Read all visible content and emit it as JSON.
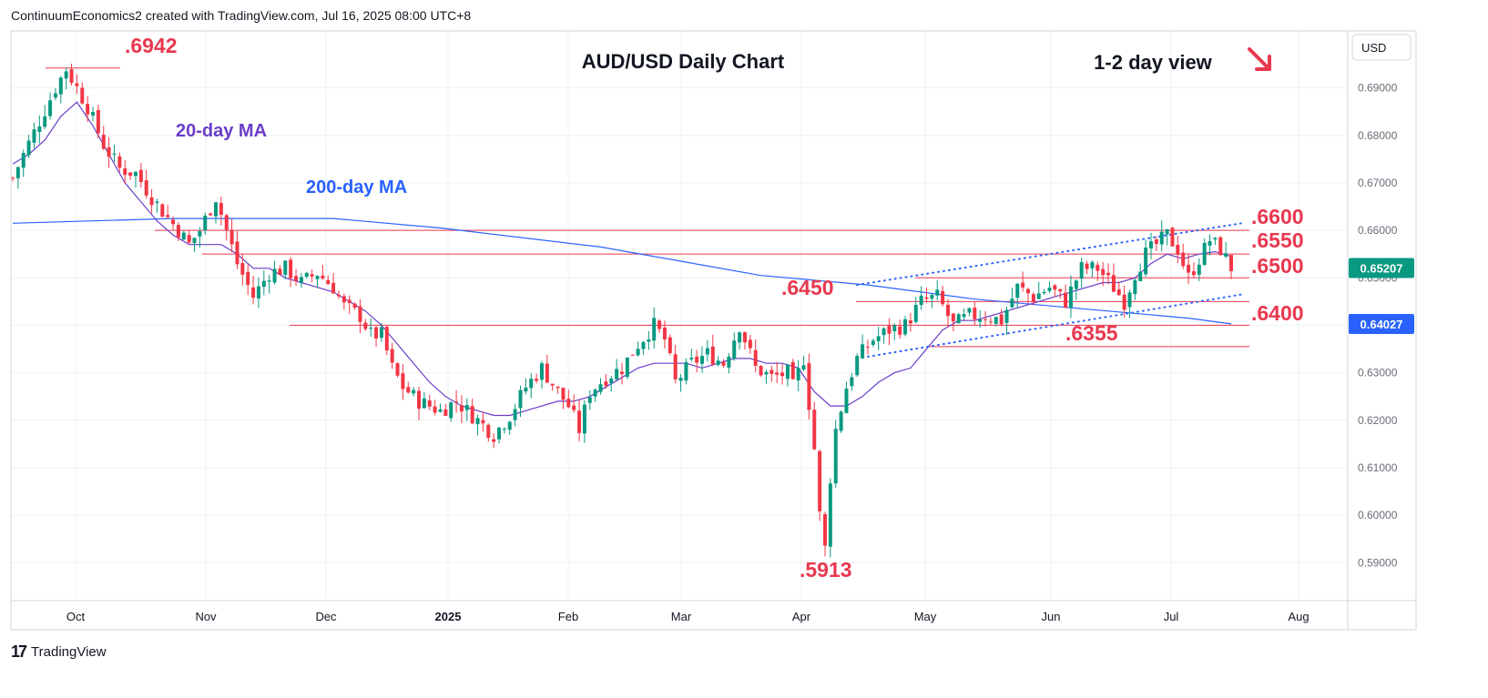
{
  "header": {
    "attribution": "ContinuumEconomics2 created with TradingView.com, Jul 16, 2025 08:00 UTC+8"
  },
  "footer": {
    "brand": "TradingView",
    "logo_text": "17"
  },
  "chart_data": {
    "type": "candlestick",
    "title": "AUD/USD Daily Chart",
    "view_label": "1-2 day view",
    "view_direction": "down",
    "currency": "USD",
    "ylim": [
      0.582,
      0.702
    ],
    "y_ticks": [
      "0.69000",
      "0.68000",
      "0.67000",
      "0.66000",
      "0.65000",
      "0.64000",
      "0.63000",
      "0.62000",
      "0.61000",
      "0.60000",
      "0.59000"
    ],
    "x_ticks": [
      "Oct",
      "Nov",
      "Dec",
      "2025",
      "Feb",
      "Mar",
      "Apr",
      "May",
      "Jun",
      "Jul",
      "Aug"
    ],
    "price_badges": [
      {
        "value": "0.65207",
        "color": "#089981"
      },
      {
        "value": "0.64027",
        "color": "#2962ff"
      }
    ],
    "moving_averages": [
      {
        "name": "20-day MA",
        "color": "#6a3ec9"
      },
      {
        "name": "200-day MA",
        "color": "#2962ff"
      }
    ],
    "levels": [
      {
        "value": 0.66,
        "label": ".6600"
      },
      {
        "value": 0.655,
        "label": ".6550"
      },
      {
        "value": 0.65,
        "label": ".6500"
      },
      {
        "value": 0.645,
        "label": ".6450"
      },
      {
        "value": 0.64,
        "label": ".6400"
      },
      {
        "value": 0.6355,
        "label": ".6355"
      }
    ],
    "annotations": [
      {
        "label": ".6942",
        "value": 0.6942
      },
      {
        "label": ".5913",
        "value": 0.5913
      }
    ],
    "level_color": "#e8384f",
    "up_color": "#089981",
    "down_color": "#f23645",
    "price_path": [
      [
        0,
        0.671
      ],
      [
        2,
        0.676
      ],
      [
        5,
        0.683
      ],
      [
        8,
        0.69
      ],
      [
        10,
        0.694
      ],
      [
        12,
        0.69
      ],
      [
        14,
        0.686
      ],
      [
        17,
        0.678
      ],
      [
        20,
        0.673
      ],
      [
        23,
        0.672
      ],
      [
        26,
        0.667
      ],
      [
        28,
        0.664
      ],
      [
        31,
        0.66
      ],
      [
        33,
        0.657
      ],
      [
        35,
        0.66
      ],
      [
        38,
        0.667
      ],
      [
        40,
        0.66
      ],
      [
        42,
        0.653
      ],
      [
        45,
        0.646
      ],
      [
        48,
        0.651
      ],
      [
        51,
        0.652
      ],
      [
        54,
        0.649
      ],
      [
        57,
        0.651
      ],
      [
        60,
        0.648
      ],
      [
        62,
        0.644
      ],
      [
        65,
        0.642
      ],
      [
        67,
        0.638
      ],
      [
        69,
        0.638
      ],
      [
        71,
        0.631
      ],
      [
        73,
        0.627
      ],
      [
        76,
        0.624
      ],
      [
        80,
        0.622
      ],
      [
        83,
        0.624
      ],
      [
        86,
        0.621
      ],
      [
        90,
        0.617
      ],
      [
        93,
        0.621
      ],
      [
        96,
        0.627
      ],
      [
        99,
        0.631
      ],
      [
        102,
        0.626
      ],
      [
        104,
        0.623
      ],
      [
        106,
        0.618
      ],
      [
        108,
        0.626
      ],
      [
        111,
        0.629
      ],
      [
        114,
        0.631
      ],
      [
        117,
        0.636
      ],
      [
        120,
        0.64
      ],
      [
        122,
        0.637
      ],
      [
        124,
        0.628
      ],
      [
        127,
        0.632
      ],
      [
        130,
        0.634
      ],
      [
        133,
        0.632
      ],
      [
        136,
        0.64
      ],
      [
        139,
        0.631
      ],
      [
        142,
        0.629
      ],
      [
        145,
        0.63
      ],
      [
        146,
        0.627
      ],
      [
        148,
        0.633
      ],
      [
        150,
        0.614
      ],
      [
        151,
        0.6
      ],
      [
        152,
        0.593
      ],
      [
        153,
        0.608
      ],
      [
        154,
        0.618
      ],
      [
        156,
        0.627
      ],
      [
        158,
        0.633
      ],
      [
        161,
        0.637
      ],
      [
        164,
        0.639
      ],
      [
        167,
        0.64
      ],
      [
        170,
        0.645
      ],
      [
        173,
        0.646
      ],
      [
        176,
        0.64
      ],
      [
        179,
        0.642
      ],
      [
        182,
        0.642
      ],
      [
        185,
        0.641
      ],
      [
        188,
        0.648
      ],
      [
        191,
        0.646
      ],
      [
        194,
        0.648
      ],
      [
        197,
        0.645
      ],
      [
        200,
        0.652
      ],
      [
        203,
        0.652
      ],
      [
        206,
        0.648
      ],
      [
        208,
        0.645
      ],
      [
        210,
        0.651
      ],
      [
        212,
        0.655
      ],
      [
        214,
        0.657
      ],
      [
        216,
        0.659
      ],
      [
        218,
        0.656
      ],
      [
        220,
        0.65
      ],
      [
        222,
        0.654
      ],
      [
        224,
        0.658
      ],
      [
        226,
        0.656
      ],
      [
        228,
        0.6521
      ]
    ],
    "ma20_path": [
      [
        0,
        0.674
      ],
      [
        3,
        0.676
      ],
      [
        6,
        0.679
      ],
      [
        9,
        0.684
      ],
      [
        12,
        0.687
      ],
      [
        15,
        0.682
      ],
      [
        18,
        0.676
      ],
      [
        21,
        0.67
      ],
      [
        24,
        0.666
      ],
      [
        27,
        0.662
      ],
      [
        30,
        0.659
      ],
      [
        33,
        0.657
      ],
      [
        36,
        0.657
      ],
      [
        39,
        0.657
      ],
      [
        42,
        0.655
      ],
      [
        45,
        0.652
      ],
      [
        48,
        0.652
      ],
      [
        51,
        0.65
      ],
      [
        54,
        0.649
      ],
      [
        57,
        0.648
      ],
      [
        60,
        0.647
      ],
      [
        63,
        0.645
      ],
      [
        66,
        0.643
      ],
      [
        69,
        0.64
      ],
      [
        72,
        0.636
      ],
      [
        75,
        0.632
      ],
      [
        78,
        0.628
      ],
      [
        81,
        0.625
      ],
      [
        84,
        0.623
      ],
      [
        87,
        0.622
      ],
      [
        90,
        0.621
      ],
      [
        93,
        0.621
      ],
      [
        96,
        0.622
      ],
      [
        99,
        0.623
      ],
      [
        102,
        0.624
      ],
      [
        105,
        0.624
      ],
      [
        108,
        0.625
      ],
      [
        111,
        0.627
      ],
      [
        114,
        0.629
      ],
      [
        117,
        0.631
      ],
      [
        120,
        0.632
      ],
      [
        123,
        0.632
      ],
      [
        126,
        0.632
      ],
      [
        129,
        0.631
      ],
      [
        132,
        0.632
      ],
      [
        135,
        0.633
      ],
      [
        138,
        0.633
      ],
      [
        141,
        0.632
      ],
      [
        144,
        0.632
      ],
      [
        147,
        0.631
      ],
      [
        150,
        0.626
      ],
      [
        153,
        0.623
      ],
      [
        156,
        0.623
      ],
      [
        159,
        0.625
      ],
      [
        162,
        0.628
      ],
      [
        165,
        0.63
      ],
      [
        168,
        0.631
      ],
      [
        171,
        0.635
      ],
      [
        174,
        0.639
      ],
      [
        177,
        0.641
      ],
      [
        180,
        0.641
      ],
      [
        183,
        0.642
      ],
      [
        186,
        0.643
      ],
      [
        189,
        0.644
      ],
      [
        192,
        0.645
      ],
      [
        195,
        0.646
      ],
      [
        198,
        0.647
      ],
      [
        201,
        0.648
      ],
      [
        204,
        0.649
      ],
      [
        207,
        0.649
      ],
      [
        210,
        0.65
      ],
      [
        213,
        0.653
      ],
      [
        216,
        0.655
      ],
      [
        219,
        0.654
      ],
      [
        222,
        0.655
      ],
      [
        225,
        0.6555
      ],
      [
        228,
        0.6545
      ]
    ],
    "ma200_path": [
      [
        0,
        0.6615
      ],
      [
        30,
        0.6625
      ],
      [
        60,
        0.6625
      ],
      [
        80,
        0.6605
      ],
      [
        110,
        0.6565
      ],
      [
        140,
        0.6505
      ],
      [
        160,
        0.6485
      ],
      [
        180,
        0.6455
      ],
      [
        200,
        0.6435
      ],
      [
        220,
        0.6415
      ],
      [
        228,
        0.6403
      ]
    ],
    "channel_top": [
      [
        158,
        0.6485
      ],
      [
        230,
        0.6615
      ]
    ],
    "channel_bottom": [
      [
        158,
        0.633
      ],
      [
        230,
        0.6465
      ]
    ]
  }
}
